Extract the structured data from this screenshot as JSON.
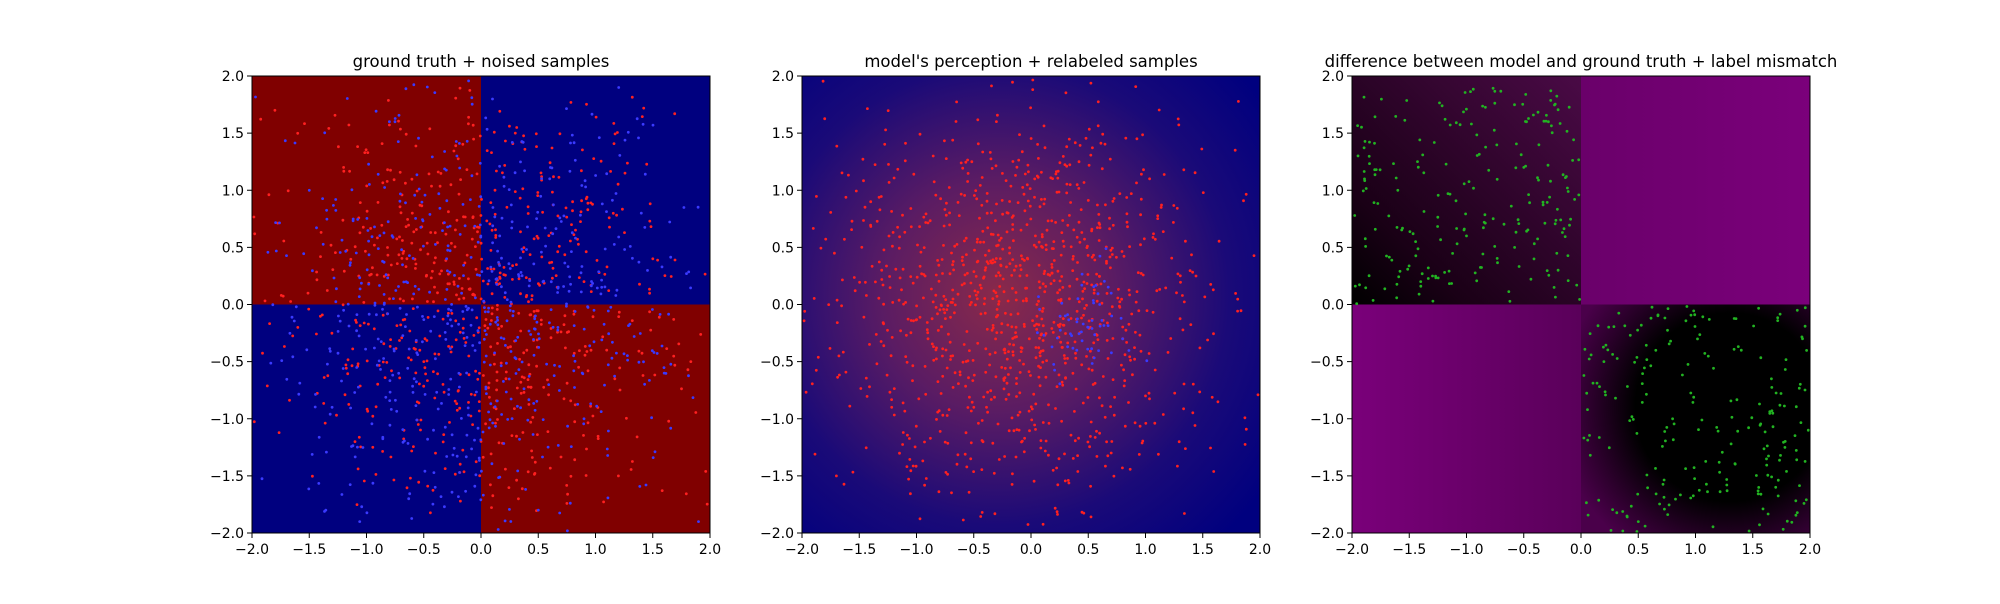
{
  "figure": {
    "background": "#ffffff"
  },
  "chart_data": [
    {
      "type": "scatter",
      "title": "ground truth + noised samples",
      "xlabel": "",
      "ylabel": "",
      "xlim": [
        -2.0,
        2.0
      ],
      "ylim": [
        -2.0,
        2.0
      ],
      "xticks": [
        "-2.0",
        "-1.5",
        "-1.0",
        "-0.5",
        "0.0",
        "0.5",
        "1.0",
        "1.5",
        "2.0"
      ],
      "yticks": [
        "-2.0",
        "-1.5",
        "-1.0",
        "-0.5",
        "0.0",
        "0.5",
        "1.0",
        "1.5",
        "2.0"
      ],
      "grid": false,
      "legend": "none",
      "background_map": {
        "kind": "quadrants",
        "regions": [
          {
            "x": [
              -2.0,
              0.0
            ],
            "y": [
              0.0,
              2.0
            ],
            "color": "#800000"
          },
          {
            "x": [
              0.0,
              2.0
            ],
            "y": [
              0.0,
              2.0
            ],
            "color": "#00007f"
          },
          {
            "x": [
              -2.0,
              0.0
            ],
            "y": [
              -2.0,
              0.0
            ],
            "color": "#00007f"
          },
          {
            "x": [
              0.0,
              2.0
            ],
            "y": [
              -2.0,
              0.0
            ],
            "color": "#800000"
          }
        ]
      },
      "series": [
        {
          "color": "#ff2020",
          "n_points_approx": 700,
          "distribution": "uniform over [-2,2]x[-2,2], denser toward center",
          "points_sample": [
            [
              -1.8,
              1.7
            ],
            [
              -1.2,
              1.2
            ],
            [
              -0.6,
              0.8
            ],
            [
              0.3,
              1.5
            ],
            [
              0.8,
              0.9
            ],
            [
              1.5,
              0.4
            ],
            [
              -0.5,
              -0.5
            ],
            [
              -1.1,
              -1.2
            ],
            [
              0.4,
              -0.4
            ],
            [
              1.2,
              -1.5
            ],
            [
              -1.6,
              -0.2
            ],
            [
              0.9,
              0.2
            ]
          ]
        },
        {
          "color": "#3a3aff",
          "n_points_approx": 650,
          "distribution": "uniform over [-2,2]x[-2,2], denser toward center",
          "points_sample": [
            [
              -1.5,
              1.0
            ],
            [
              -0.8,
              1.6
            ],
            [
              -0.3,
              0.4
            ],
            [
              0.6,
              1.1
            ],
            [
              1.4,
              0.8
            ],
            [
              0.2,
              -0.3
            ],
            [
              0.9,
              -1.0
            ],
            [
              1.6,
              -0.6
            ],
            [
              -1.3,
              -0.9
            ],
            [
              -0.4,
              -1.6
            ],
            [
              0.5,
              -1.8
            ],
            [
              1.9,
              -1.9
            ]
          ]
        }
      ]
    },
    {
      "type": "scatter",
      "title": "model's perception + relabeled samples",
      "xlabel": "",
      "ylabel": "",
      "xlim": [
        -2.0,
        2.0
      ],
      "ylim": [
        -2.0,
        2.0
      ],
      "xticks": [
        "-2.0",
        "-1.5",
        "-1.0",
        "-0.5",
        "0.0",
        "0.5",
        "1.0",
        "1.5",
        "2.0"
      ],
      "yticks": [
        "-2.0",
        "-1.5",
        "-1.0",
        "-0.5",
        "0.0",
        "0.5",
        "1.0",
        "1.5",
        "2.0"
      ],
      "grid": false,
      "legend": "none",
      "background_map": {
        "kind": "radial-blend",
        "center": [
          -0.3,
          0.1
        ],
        "inner_color": "#8a2a4a",
        "outer_color": "#00007f"
      },
      "series": [
        {
          "color": "#ff2020",
          "n_points_approx": 1050,
          "distribution": "approximately gaussian around origin",
          "points_sample": [
            [
              -0.4,
              0.3
            ],
            [
              -0.2,
              0.8
            ],
            [
              0.1,
              0.5
            ],
            [
              -0.9,
              -0.3
            ],
            [
              -0.5,
              -0.9
            ],
            [
              0.6,
              0.7
            ],
            [
              1.0,
              -0.8
            ],
            [
              -1.4,
              0.9
            ],
            [
              0.7,
              -1.3
            ],
            [
              -1.7,
              -1.5
            ]
          ]
        },
        {
          "color": "#3a3aff",
          "n_points_approx": 60,
          "distribution": "cluster to the right of origin",
          "points_sample": [
            [
              0.3,
              -0.1
            ],
            [
              0.5,
              -0.2
            ],
            [
              0.6,
              0.0
            ],
            [
              0.4,
              -0.4
            ],
            [
              0.8,
              -0.3
            ],
            [
              0.7,
              0.1
            ]
          ]
        }
      ]
    },
    {
      "type": "scatter",
      "title": "difference between model and ground truth + label mismatch",
      "xlabel": "",
      "ylabel": "",
      "xlim": [
        -2.0,
        2.0
      ],
      "ylim": [
        -2.0,
        2.0
      ],
      "xticks": [
        "-2.0",
        "-1.5",
        "-1.0",
        "-0.5",
        "0.0",
        "0.5",
        "1.0",
        "1.5",
        "2.0"
      ],
      "yticks": [
        "-2.0",
        "-1.5",
        "-1.0",
        "-0.5",
        "0.0",
        "0.5",
        "1.0",
        "1.5",
        "2.0"
      ],
      "grid": false,
      "legend": "none",
      "background_map": {
        "kind": "quadrant-gradients",
        "regions": [
          {
            "x": [
              -2.0,
              0.0
            ],
            "y": [
              0.0,
              2.0
            ],
            "from": "#000000",
            "to": "#4a0a46"
          },
          {
            "x": [
              0.0,
              2.0
            ],
            "y": [
              0.0,
              2.0
            ],
            "from": "#6a006a",
            "to": "#7b007b"
          },
          {
            "x": [
              -2.0,
              0.0
            ],
            "y": [
              -2.0,
              0.0
            ],
            "from": "#7a007a",
            "to": "#5a005a"
          },
          {
            "x": [
              0.0,
              2.0
            ],
            "y": [
              -2.0,
              0.0
            ],
            "from": "#4a004a",
            "to": "#000000"
          }
        ]
      },
      "series": [
        {
          "color": "#22b322",
          "n_points_approx": 440,
          "distribution": "upper-left and lower-right quadrants",
          "points_sample": [
            [
              -1.6,
              1.0
            ],
            [
              -1.0,
              0.6
            ],
            [
              -0.5,
              1.2
            ],
            [
              -0.2,
              0.3
            ],
            [
              -1.4,
              0.2
            ],
            [
              0.2,
              -0.5
            ],
            [
              0.8,
              -1.0
            ],
            [
              1.4,
              -0.4
            ],
            [
              1.7,
              -1.6
            ],
            [
              0.5,
              -1.9
            ]
          ]
        }
      ]
    }
  ]
}
